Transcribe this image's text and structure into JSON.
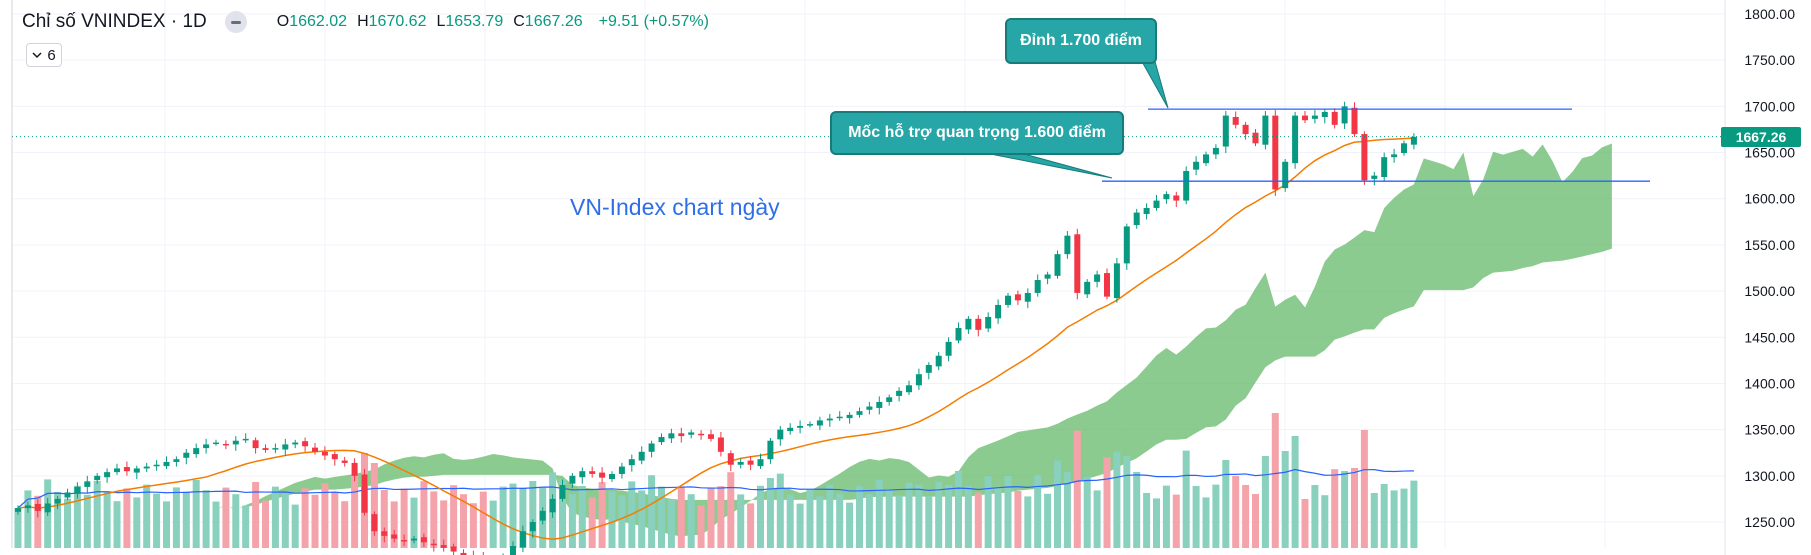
{
  "header": {
    "title": "Chỉ số VNINDEX · 1D",
    "open_label": "O",
    "open": "1662.02",
    "high_label": "H",
    "high": "1670.62",
    "low_label": "L",
    "low": "1653.79",
    "close_label": "C",
    "close": "1667.26",
    "change": "+9.51 (+0.57%)"
  },
  "indicator_toggle": {
    "icon": "chevron-down-icon",
    "count": "6"
  },
  "annotations": {
    "peak_callout": "Đỉnh 1.700 điểm",
    "support_callout": "Mốc hỗ trợ quan trọng 1.600 điểm",
    "chart_label": "VN-Index chart ngày"
  },
  "price_tag": "1667.26",
  "colors": {
    "up": "#089981",
    "down": "#f23645",
    "ma": "#f57c00",
    "vol_ma": "#2962ff",
    "cloud": "#66b96a",
    "callout": "#26a6a6",
    "level_line": "#2962ff"
  },
  "chart_data": {
    "type": "candlestick",
    "title": "Chỉ số VNINDEX · 1D",
    "ylim": [
      1225,
      1810
    ],
    "yticks": [
      "1800.00",
      "1750.00",
      "1700.00",
      "1650.00",
      "1600.00",
      "1550.00",
      "1500.00",
      "1450.00",
      "1400.00",
      "1350.00",
      "1300.00",
      "1250.00"
    ],
    "ytick_values": [
      1800,
      1750,
      1700,
      1650,
      1600,
      1550,
      1500,
      1450,
      1400,
      1350,
      1300,
      1250
    ],
    "closes": [
      1265,
      1268,
      1262,
      1270,
      1275,
      1282,
      1288,
      1294,
      1300,
      1304,
      1308,
      1305,
      1308,
      1310,
      1312,
      1315,
      1318,
      1325,
      1330,
      1334,
      1336,
      1334,
      1338,
      1340,
      1330,
      1328,
      1330,
      1334,
      1336,
      1332,
      1326,
      1322,
      1318,
      1314,
      1300,
      1260,
      1240,
      1235,
      1232,
      1230,
      1232,
      1228,
      1225,
      1222,
      1218,
      1214,
      1210,
      1208,
      1210,
      1212,
      1224,
      1240,
      1250,
      1262,
      1275,
      1290,
      1300,
      1305,
      1302,
      1298,
      1302,
      1310,
      1318,
      1326,
      1335,
      1342,
      1346,
      1343,
      1347,
      1345,
      1340,
      1326,
      1312,
      1315,
      1312,
      1318,
      1338,
      1350,
      1352,
      1354,
      1356,
      1360,
      1362,
      1364,
      1366,
      1370,
      1375,
      1380,
      1385,
      1392,
      1398,
      1410,
      1420,
      1430,
      1445,
      1460,
      1470,
      1458,
      1472,
      1485,
      1495,
      1490,
      1498,
      1512,
      1518,
      1540,
      1560,
      1498,
      1510,
      1518,
      1494,
      1530,
      1570,
      1585,
      1590,
      1598,
      1605,
      1598,
      1630,
      1640,
      1648,
      1655,
      1690,
      1680,
      1670,
      1660,
      1690,
      1610,
      1640,
      1690,
      1685,
      1690,
      1694,
      1680,
      1700,
      1670,
      1620,
      1625,
      1645,
      1648,
      1660,
      1667
    ],
    "ma_line": "orange 20-day moving average tracking the closes",
    "volume_ma": "blue moving average of volume bars",
    "levels": [
      {
        "name": "peak",
        "value": 1697
      },
      {
        "name": "support",
        "value": 1619
      }
    ]
  }
}
